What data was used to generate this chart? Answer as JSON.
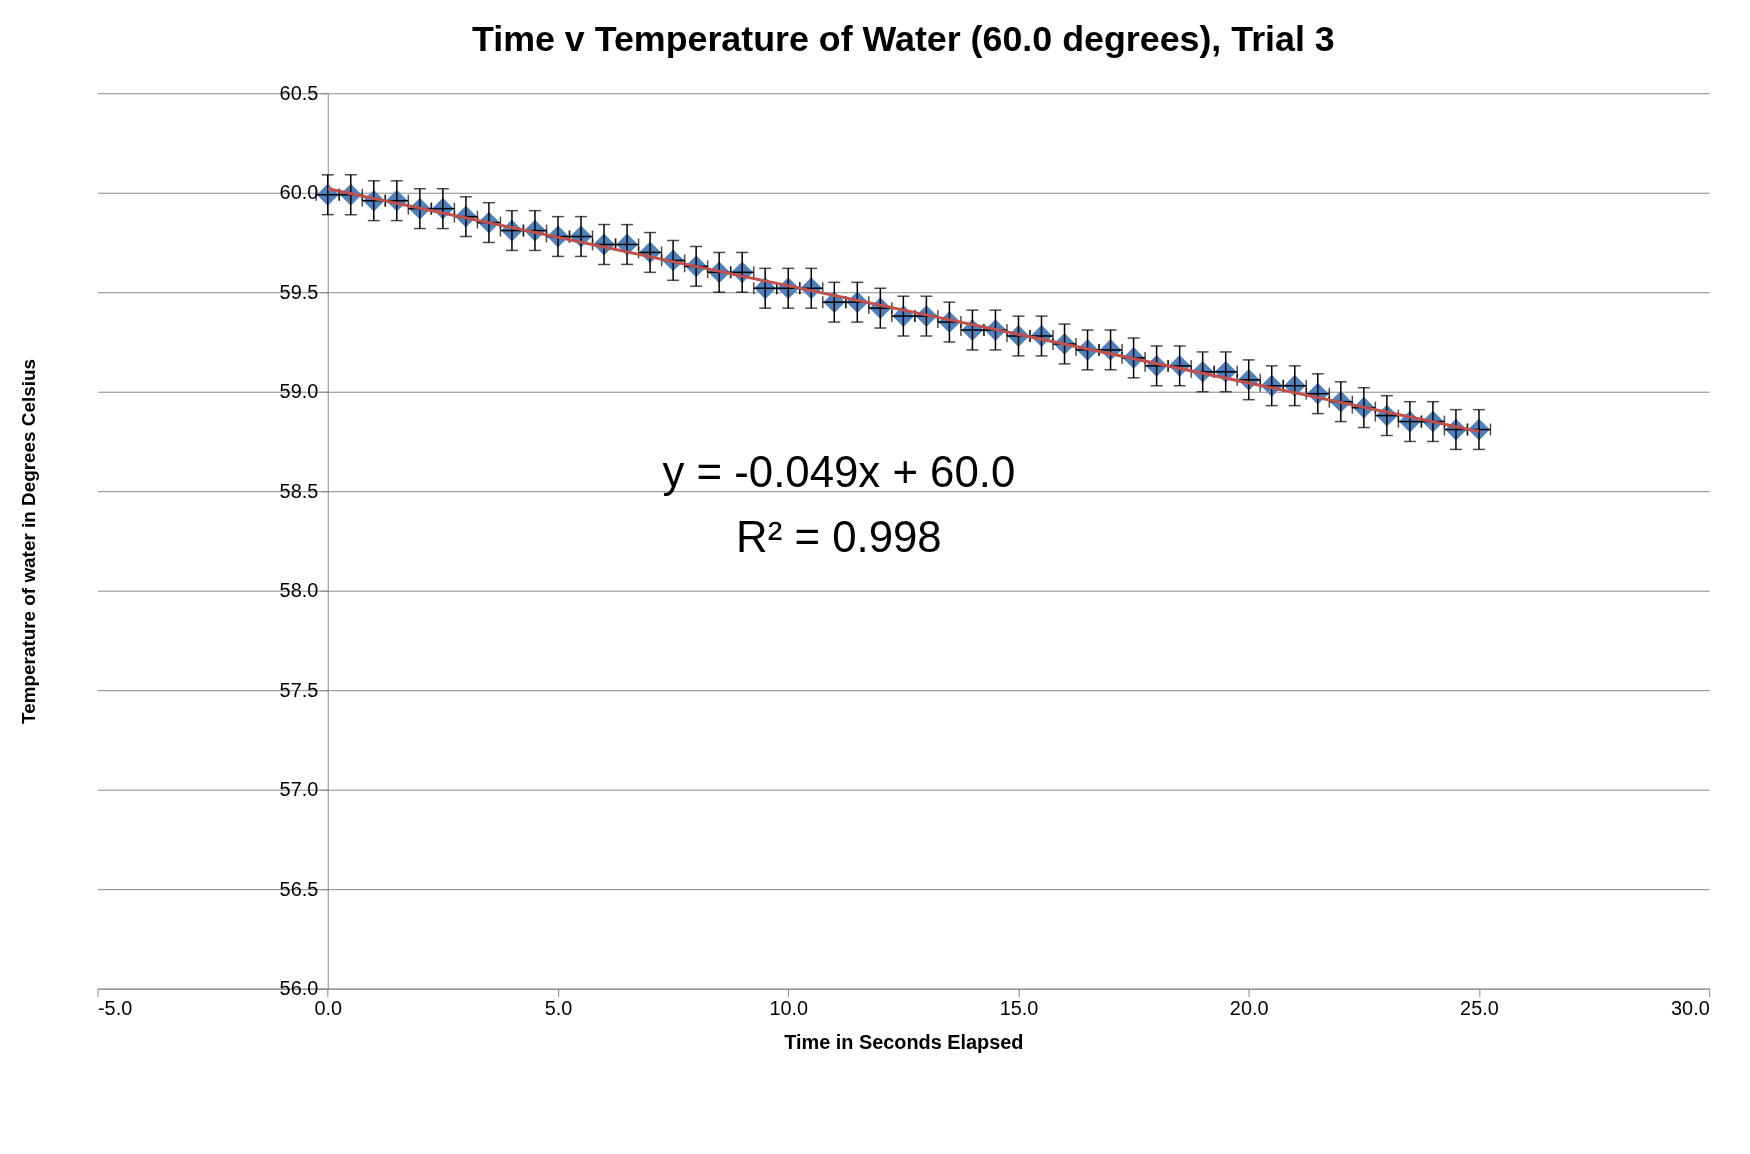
{
  "chart_data": {
    "type": "scatter",
    "title": "Time v Temperature of Water (60.0 degrees), Trial 3",
    "xlabel": "Time in Seconds Elapsed",
    "ylabel": "Temperature of water in Degrees Celsius",
    "x": [
      0,
      0.5,
      1,
      1.5,
      2,
      2.5,
      3,
      3.5,
      4,
      4.5,
      5,
      5.5,
      6,
      6.5,
      7,
      7.5,
      8,
      8.5,
      9,
      9.5,
      10,
      10.5,
      11,
      11.5,
      12,
      12.5,
      13,
      13.5,
      14,
      14.5,
      15,
      15.5,
      16,
      16.5,
      17,
      17.5,
      18,
      18.5,
      19,
      19.5,
      20,
      20.5,
      21,
      21.5,
      22,
      22.5,
      23,
      23.5,
      24,
      24.5,
      25
    ],
    "series": [
      {
        "type": "scatter",
        "color": "#4f81bd",
        "marker": "diamond",
        "values": [
          59.99,
          59.99,
          59.96,
          59.96,
          59.92,
          59.92,
          59.88,
          59.85,
          59.81,
          59.81,
          59.78,
          59.78,
          59.74,
          59.74,
          59.7,
          59.66,
          59.63,
          59.6,
          59.6,
          59.52,
          59.52,
          59.52,
          59.45,
          59.45,
          59.42,
          59.38,
          59.38,
          59.35,
          59.31,
          59.31,
          59.28,
          59.28,
          59.24,
          59.21,
          59.21,
          59.17,
          59.13,
          59.13,
          59.1,
          59.1,
          59.06,
          59.03,
          59.03,
          58.99,
          58.95,
          58.92,
          58.88,
          58.85,
          58.85,
          58.81,
          58.81
        ],
        "errors": [
          0.1,
          0.1,
          0.1,
          0.1,
          0.1,
          0.1,
          0.1,
          0.1,
          0.1,
          0.1,
          0.1,
          0.1,
          0.1,
          0.1,
          0.1,
          0.1,
          0.1,
          0.1,
          0.1,
          0.1,
          0.1,
          0.1,
          0.1,
          0.1,
          0.1,
          0.1,
          0.1,
          0.1,
          0.1,
          0.1,
          0.1,
          0.1,
          0.1,
          0.1,
          0.1,
          0.1,
          0.1,
          0.1,
          0.1,
          0.1,
          0.1,
          0.1,
          0.1,
          0.1,
          0.1,
          0.1,
          0.1,
          0.1,
          0.1,
          0.1,
          0.1
        ],
        "xerrors": [
          0.25,
          0.25,
          0.25,
          0.25,
          0.25,
          0.25,
          0.25,
          0.25,
          0.25,
          0.25,
          0.25,
          0.25,
          0.25,
          0.25,
          0.25,
          0.25,
          0.25,
          0.25,
          0.25,
          0.25,
          0.25,
          0.25,
          0.25,
          0.25,
          0.25,
          0.25,
          0.25,
          0.25,
          0.25,
          0.25,
          0.25,
          0.25,
          0.25,
          0.25,
          0.25,
          0.25,
          0.25,
          0.25,
          0.25,
          0.25,
          0.25,
          0.25,
          0.25,
          0.25,
          0.25,
          0.25,
          0.25,
          0.25,
          0.25,
          0.25,
          0.25
        ]
      },
      {
        "type": "line",
        "color": "#c0504d",
        "x": [
          0,
          25
        ],
        "values": [
          60.02,
          58.8
        ]
      }
    ],
    "annotations": [
      "y = -0.049x + 60.0",
      "R² = 0.998"
    ],
    "xlim": [
      -5,
      30
    ],
    "xticks": [
      {
        "value": -5,
        "label": "-5.0"
      },
      {
        "value": 0,
        "label": "0.0"
      },
      {
        "value": 5,
        "label": "5.0"
      },
      {
        "value": 10,
        "label": "10.0"
      },
      {
        "value": 15,
        "label": "15.0"
      },
      {
        "value": 20,
        "label": "20.0"
      },
      {
        "value": 25,
        "label": "25.0"
      },
      {
        "value": 30,
        "label": "30.0"
      }
    ],
    "ylim": [
      56,
      60.5
    ],
    "yticks": [
      {
        "value": 56,
        "label": "56.0"
      },
      {
        "value": 56.5,
        "label": "56.5"
      },
      {
        "value": 57,
        "label": "57.0"
      },
      {
        "value": 57.5,
        "label": "57.5"
      },
      {
        "value": 58,
        "label": "58.0"
      },
      {
        "value": 58.5,
        "label": "58.5"
      },
      {
        "value": 59,
        "label": "59.0"
      },
      {
        "value": 59.5,
        "label": "59.5"
      },
      {
        "value": 60,
        "label": "60.0"
      },
      {
        "value": 60.5,
        "label": "60.5"
      }
    ],
    "grid": "y"
  }
}
